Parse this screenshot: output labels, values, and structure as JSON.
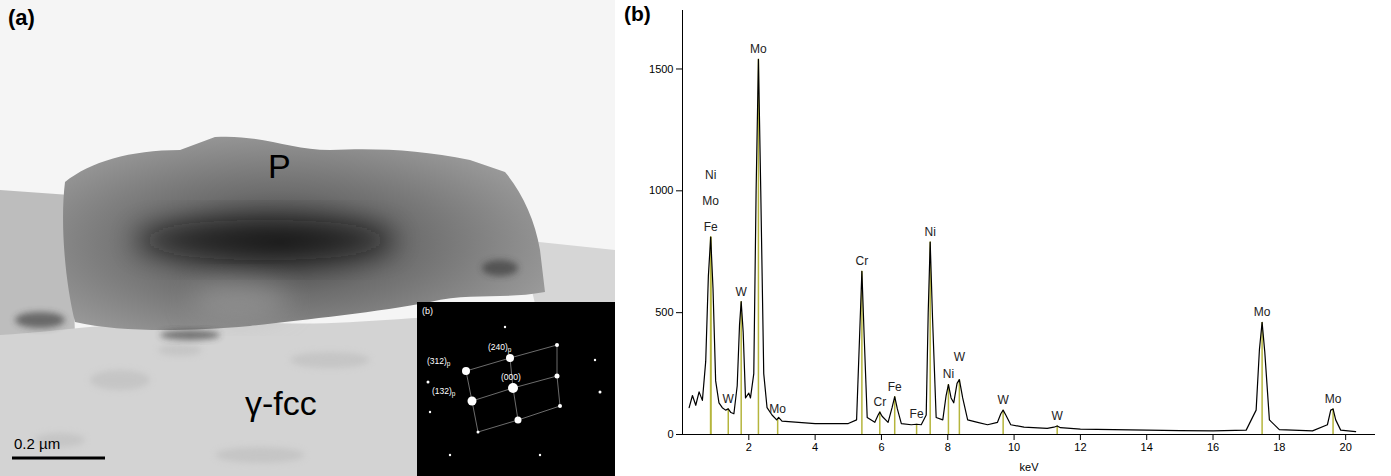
{
  "micrograph": {
    "panel_label": "(a)",
    "phase_labels": {
      "precipitate": "P",
      "matrix": "γ-fcc"
    },
    "scale_bar": "0.2 µm",
    "inset": {
      "panel_label": "(b)",
      "spots": [
        {
          "label": "(312)",
          "subscript": "p"
        },
        {
          "label": "(240)",
          "subscript": "p"
        },
        {
          "label": "(000)",
          "subscript": ""
        },
        {
          "label": "(132)",
          "subscript": "p"
        }
      ]
    }
  },
  "chart_data": {
    "type": "line",
    "panel_label": "(b)",
    "x_label": "keV",
    "color": "#000000",
    "xlim": [
      0,
      20.9
    ],
    "xticks": [
      2,
      4,
      6,
      8,
      10,
      12,
      14,
      16,
      18,
      20
    ],
    "ylim": [
      0,
      1740
    ],
    "yticks": [
      0,
      500,
      1000,
      1500
    ],
    "x": [
      0.2,
      0.3,
      0.4,
      0.5,
      0.6,
      0.7,
      0.78,
      0.85,
      0.92,
      1.0,
      1.1,
      1.2,
      1.3,
      1.38,
      1.46,
      1.55,
      1.65,
      1.72,
      1.77,
      1.83,
      1.9,
      2.0,
      2.05,
      2.15,
      2.22,
      2.29,
      2.36,
      2.45,
      2.55,
      2.7,
      2.84,
      2.9,
      3.0,
      3.5,
      4.0,
      4.5,
      5.0,
      5.25,
      5.34,
      5.41,
      5.48,
      5.57,
      5.8,
      5.9,
      5.95,
      6.02,
      6.2,
      6.32,
      6.4,
      6.48,
      6.6,
      6.9,
      7.06,
      7.2,
      7.35,
      7.41,
      7.47,
      7.54,
      7.65,
      7.85,
      7.95,
      8.02,
      8.1,
      8.18,
      8.28,
      8.35,
      8.45,
      8.6,
      8.9,
      9.2,
      9.5,
      9.6,
      9.67,
      9.75,
      9.9,
      10.3,
      11.0,
      11.2,
      11.3,
      11.4,
      12.0,
      13.0,
      14.0,
      15.0,
      16.0,
      17.0,
      17.3,
      17.4,
      17.48,
      17.56,
      17.7,
      18.0,
      19.0,
      19.45,
      19.55,
      19.62,
      19.7,
      19.85,
      20.3
    ],
    "values": [
      110,
      160,
      120,
      175,
      140,
      300,
      650,
      810,
      600,
      220,
      130,
      110,
      100,
      105,
      90,
      85,
      200,
      450,
      545,
      420,
      150,
      170,
      150,
      250,
      1000,
      1540,
      1000,
      250,
      110,
      80,
      60,
      70,
      55,
      50,
      45,
      45,
      45,
      60,
      400,
      670,
      400,
      70,
      50,
      80,
      92,
      75,
      50,
      110,
      155,
      105,
      45,
      40,
      42,
      40,
      80,
      500,
      790,
      480,
      70,
      60,
      160,
      205,
      150,
      130,
      210,
      225,
      150,
      60,
      50,
      40,
      50,
      85,
      100,
      80,
      40,
      30,
      25,
      30,
      35,
      28,
      22,
      20,
      18,
      16,
      15,
      18,
      100,
      350,
      460,
      340,
      60,
      20,
      15,
      40,
      100,
      105,
      60,
      18,
      12
    ],
    "peak_lines": {
      "color": "#b5b53c",
      "lines": [
        {
          "label": "Fe",
          "kev": 0.85,
          "counts": 810
        },
        {
          "label": "Mo",
          "kev": 0.85,
          "counts": 810
        },
        {
          "label": "Ni",
          "kev": 0.85,
          "counts": 810
        },
        {
          "label": "W",
          "kev": 1.38,
          "counts": 105
        },
        {
          "label": "W",
          "kev": 1.77,
          "counts": 545
        },
        {
          "label": "Mo",
          "kev": 2.29,
          "counts": 1540
        },
        {
          "label": "Mo",
          "kev": 2.87,
          "counts": 65
        },
        {
          "label": "Cr",
          "kev": 5.41,
          "counts": 670
        },
        {
          "label": "Cr",
          "kev": 5.95,
          "counts": 92
        },
        {
          "label": "Fe",
          "kev": 6.4,
          "counts": 155
        },
        {
          "label": "Fe",
          "kev": 7.06,
          "counts": 42
        },
        {
          "label": "Ni",
          "kev": 7.47,
          "counts": 790
        },
        {
          "label": "Ni",
          "kev": 8.02,
          "counts": 205
        },
        {
          "label": "W",
          "kev": 8.35,
          "counts": 225
        },
        {
          "label": "W",
          "kev": 9.67,
          "counts": 100
        },
        {
          "label": "W",
          "kev": 11.3,
          "counts": 35
        },
        {
          "label": "Mo",
          "kev": 17.48,
          "counts": 460
        },
        {
          "label": "Mo",
          "kev": 19.62,
          "counts": 105
        }
      ]
    }
  }
}
